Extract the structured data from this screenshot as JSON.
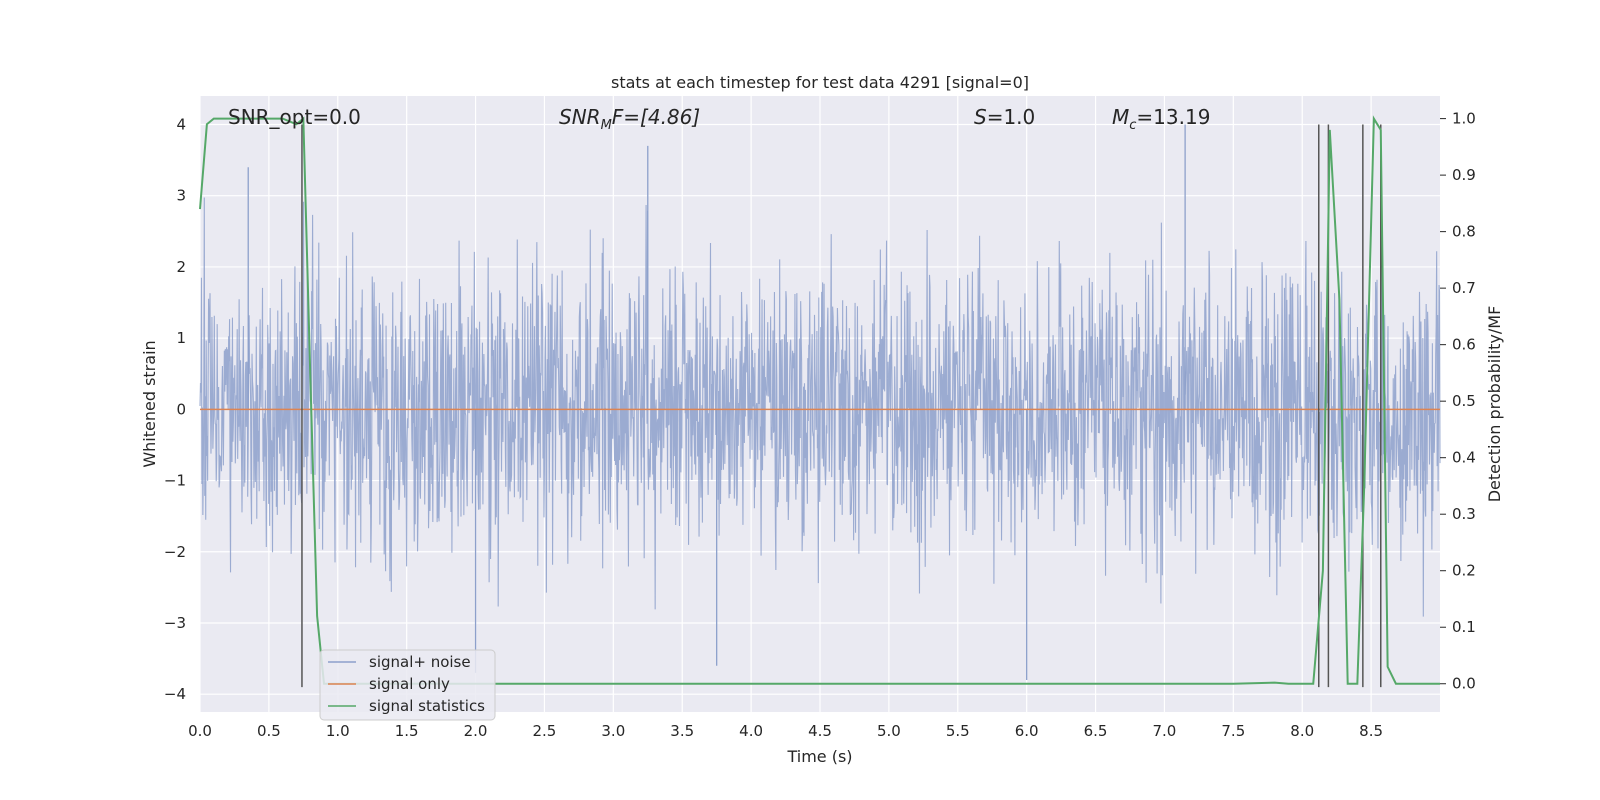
{
  "chart_data": {
    "type": "line",
    "title": "stats at each timestep for test data 4291 [signal=0]",
    "xlabel": "Time (s)",
    "ylabel": "Whitened strain",
    "ylabel_right": "Detection probability/MF",
    "xlim": [
      0.0,
      9.0
    ],
    "ylim": [
      -4.25,
      4.4
    ],
    "ylim_right": [
      -0.05,
      1.04
    ],
    "grid": true,
    "legend_placement": "lower-left",
    "x_ticks": [
      "0.0",
      "0.5",
      "1.0",
      "1.5",
      "2.0",
      "2.5",
      "3.0",
      "3.5",
      "4.0",
      "4.5",
      "5.0",
      "5.5",
      "6.0",
      "6.5",
      "7.0",
      "7.5",
      "8.0",
      "8.5"
    ],
    "y_ticks": [
      "4",
      "3",
      "2",
      "1",
      "0",
      "−1",
      "−2",
      "−3",
      "−4"
    ],
    "y_ticks_right": [
      "1.0",
      "0.9",
      "0.8",
      "0.7",
      "0.6",
      "0.5",
      "0.4",
      "0.3",
      "0.2",
      "0.1",
      "0.0"
    ],
    "annotations": {
      "snr_opt": "SNR_opt=0.0",
      "snr_mf_prefix": "SNR",
      "snr_mf_sub": "M",
      "snr_mf_suffix": "F=[4.86]",
      "s_var": "S",
      "s_value": "=1.0",
      "mc_var": "M",
      "mc_sub": "c",
      "mc_value": "=13.19"
    },
    "series": [
      {
        "name": "signal+ noise",
        "axis": "left",
        "color": "#8da0cb",
        "description": "whitened noise-dominated strain, roughly ±2 with spikes to ±4",
        "noise_envelope": [
          -2.5,
          2.5
        ],
        "peaks": [
          {
            "x": 3.25,
            "y": 3.7
          },
          {
            "x": 7.15,
            "y": 4.0
          },
          {
            "x": 0.35,
            "y": 3.4
          },
          {
            "x": 2.0,
            "y": -3.7
          },
          {
            "x": 3.75,
            "y": -3.6
          },
          {
            "x": 6.0,
            "y": -3.8
          }
        ]
      },
      {
        "name": "signal only",
        "axis": "left",
        "color": "#dd8452",
        "x": [
          0.0,
          9.0
        ],
        "y": [
          0.0,
          0.0
        ]
      },
      {
        "name": "signal statistics",
        "axis": "right",
        "color": "#55a868",
        "x": [
          0.0,
          0.05,
          0.1,
          0.15,
          0.2,
          0.3,
          0.4,
          0.5,
          0.6,
          0.7,
          0.75,
          0.8,
          0.85,
          0.9,
          1.0,
          2.0,
          3.0,
          4.0,
          5.0,
          6.0,
          7.0,
          7.5,
          7.8,
          7.9,
          8.0,
          8.08,
          8.15,
          8.2,
          8.27,
          8.33,
          8.4,
          8.45,
          8.52,
          8.57,
          8.62,
          8.68,
          9.0
        ],
        "y": [
          0.84,
          0.99,
          1.0,
          1.0,
          1.0,
          1.0,
          1.0,
          1.0,
          1.0,
          0.99,
          1.0,
          0.55,
          0.12,
          0.0,
          0.0,
          0.0,
          0.0,
          0.0,
          0.0,
          0.0,
          0.0,
          0.0,
          0.002,
          0.0,
          0.0,
          0.0,
          0.2,
          0.98,
          0.68,
          0.0,
          0.0,
          0.35,
          1.0,
          0.98,
          0.03,
          0.0,
          0.0
        ]
      }
    ],
    "vertical_markers": {
      "color": "#555555",
      "x": [
        0.74,
        8.12,
        8.19,
        8.44,
        8.57
      ],
      "y_range": [
        -3.9,
        4.0
      ]
    }
  }
}
